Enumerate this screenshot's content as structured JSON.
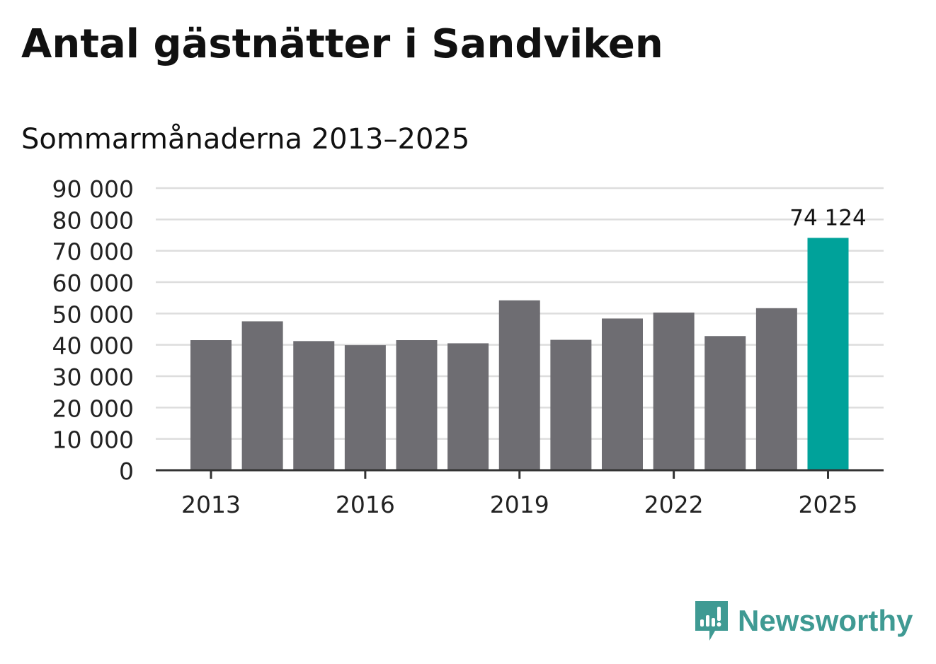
{
  "chart_data": {
    "type": "bar",
    "title": "Antal gästnätter i Sandviken",
    "subtitle": "Sommarmånaderna 2013–2025",
    "categories": [
      "2013",
      "2014",
      "2015",
      "2016",
      "2017",
      "2018",
      "2019",
      "2020",
      "2021",
      "2022",
      "2023",
      "2024",
      "2025"
    ],
    "values": [
      41500,
      47500,
      41200,
      39900,
      41500,
      40500,
      54200,
      41600,
      48400,
      50300,
      42800,
      51700,
      74124
    ],
    "highlight_index": 12,
    "highlight_label": "74 124",
    "ylim": [
      0,
      90000
    ],
    "yticks": [
      0,
      10000,
      20000,
      30000,
      40000,
      50000,
      60000,
      70000,
      80000,
      90000
    ],
    "ytick_labels": [
      "0",
      "10 000",
      "20 000",
      "30 000",
      "40 000",
      "50 000",
      "60 000",
      "70 000",
      "80 000",
      "90 000"
    ],
    "xtick_labels": [
      "2013",
      "2016",
      "2019",
      "2022",
      "2025"
    ],
    "xtick_categories": [
      "2013",
      "2016",
      "2019",
      "2022",
      "2025"
    ],
    "xlabel": "",
    "ylabel": "",
    "grid": true,
    "colors": {
      "bar": "#6e6d72",
      "highlight": "#00a29a",
      "grid": "#dddddd",
      "axis": "#333333"
    }
  },
  "brand": {
    "name": "Newsworthy",
    "color": "#3f9a93",
    "icon": "newsworthy-logo-icon"
  }
}
